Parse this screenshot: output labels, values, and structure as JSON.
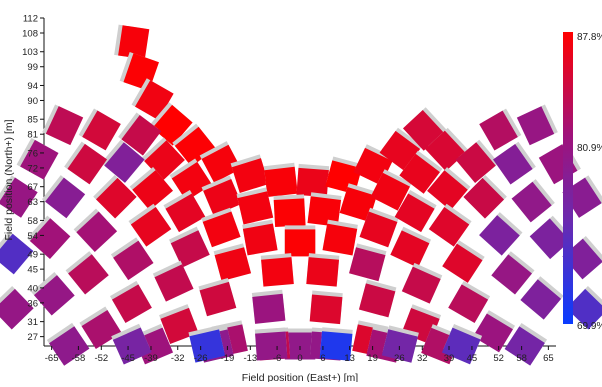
{
  "chart_data": {
    "type": "heatmap",
    "xlabel": "Field position (East+) [m]",
    "ylabel": "Field position (North+) [m]",
    "x_ticks": [
      -65,
      -58,
      -52,
      -45,
      -39,
      -32,
      -26,
      -19,
      -13,
      -6,
      0,
      6,
      13,
      19,
      26,
      32,
      39,
      45,
      52,
      58,
      65
    ],
    "y_ticks": [
      27,
      31,
      36,
      40,
      45,
      49,
      54,
      58,
      63,
      67,
      72,
      76,
      81,
      85,
      90,
      94,
      99,
      103,
      108,
      112
    ],
    "xlim": [
      -67,
      67
    ],
    "ylim": [
      24.5,
      112
    ],
    "colorbar": {
      "min": 69.9,
      "max": 87.8,
      "labels": [
        "87.8%",
        "80.9%",
        "69.9%"
      ],
      "mid_value": 80.9,
      "colors": [
        "#0a3cff",
        "#6a2ab0",
        "#a0127a",
        "#ff0000"
      ]
    },
    "rows": [
      {
        "radius": 44,
        "points": [
          {
            "angle": -81.5,
            "value": 87.3
          },
          {
            "angle": -70.8,
            "value": 87.6
          },
          {
            "angle": -60.1,
            "value": 86.9
          },
          {
            "angle": -49.4,
            "value": 87.8
          },
          {
            "angle": -38.6,
            "value": 87.6
          },
          {
            "angle": -27.9,
            "value": 87.2
          },
          {
            "angle": -17.2,
            "value": 87.0
          },
          {
            "angle": -6.5,
            "value": 87.4
          },
          {
            "angle": 4.3,
            "value": 86.5
          },
          {
            "angle": 15.0,
            "value": 87.8
          },
          {
            "angle": 25.7,
            "value": 87.0
          },
          {
            "angle": 36.4,
            "value": 86.2
          },
          {
            "angle": 47.1,
            "value": 85.0
          }
        ]
      },
      {
        "radius": 52,
        "points": [
          {
            "angle": -53.0,
            "value": 84.0
          },
          {
            "angle": -43.0,
            "value": 86.5
          },
          {
            "angle": -33.0,
            "value": 87.0
          },
          {
            "angle": -23.0,
            "value": 86.6
          },
          {
            "angle": -13.0,
            "value": 87.0
          },
          {
            "angle": -3.0,
            "value": 87.6
          },
          {
            "angle": 7.0,
            "value": 87.4
          },
          {
            "angle": 17.0,
            "value": 87.3
          },
          {
            "angle": 27.0,
            "value": 86.8
          },
          {
            "angle": 37.0,
            "value": 86.3
          },
          {
            "angle": 47.0,
            "value": 85.2
          }
        ]
      },
      {
        "radius": 60,
        "points": [
          {
            "angle": -60.0,
            "value": 84.8
          },
          {
            "angle": -50.0,
            "value": 78.5
          },
          {
            "angle": -40.0,
            "value": 86.6
          },
          {
            "angle": -30.0,
            "value": 86.0
          },
          {
            "angle": -20.0,
            "value": 87.0
          },
          {
            "angle": -10.0,
            "value": 86.8
          },
          {
            "angle": 0.0,
            "value": 87.6
          },
          {
            "angle": 10.0,
            "value": 87.2
          },
          {
            "angle": 20.0,
            "value": 86.2
          },
          {
            "angle": 30.0,
            "value": 86.0
          },
          {
            "angle": 40.0,
            "value": 86.0
          },
          {
            "angle": 50.0,
            "value": 84.3
          },
          {
            "angle": 60.0,
            "value": 82.8
          }
        ]
      },
      {
        "radius": 68,
        "points": [
          {
            "angle": -65.0,
            "value": 83.5
          },
          {
            "angle": -55.0,
            "value": 84.5
          },
          {
            "angle": -45.0,
            "value": 85.6
          },
          {
            "angle": -35.0,
            "value": 86.2
          },
          {
            "angle": -25.0,
            "value": 84.0
          },
          {
            "angle": -15.0,
            "value": 86.8
          },
          {
            "angle": -5.0,
            "value": 87.0
          },
          {
            "angle": 5.0,
            "value": 86.5
          },
          {
            "angle": 15.0,
            "value": 83.0
          },
          {
            "angle": 25.0,
            "value": 86.0
          },
          {
            "angle": 35.0,
            "value": 85.6
          },
          {
            "angle": 45.0,
            "value": 84.2
          },
          {
            "angle": 55.0,
            "value": 78.8
          },
          {
            "angle": 65.0,
            "value": 80.6
          }
        ]
      },
      {
        "radius": 78,
        "points": [
          {
            "angle": -61.0,
            "value": 81.3
          },
          {
            "angle": -52.0,
            "value": 79.0
          },
          {
            "angle": -43.0,
            "value": 81.8
          },
          {
            "angle": -34.0,
            "value": 82.5
          },
          {
            "angle": -25.0,
            "value": 83.8
          },
          {
            "angle": -16.0,
            "value": 84.6
          },
          {
            "angle": -6.0,
            "value": 81.0
          },
          {
            "angle": 5.0,
            "value": 85.5
          },
          {
            "angle": 15.0,
            "value": 84.3
          },
          {
            "angle": 24.0,
            "value": 84.0
          },
          {
            "angle": 33.0,
            "value": 85.6
          },
          {
            "angle": 42.0,
            "value": 78.0
          },
          {
            "angle": 51.0,
            "value": 80.0
          },
          {
            "angle": 60.0,
            "value": 81.0
          }
        ]
      },
      {
        "radius": 88,
        "points": [
          {
            "angle": -57.0,
            "value": 80.6
          },
          {
            "angle": -48.0,
            "value": 81.6
          },
          {
            "angle": -39.0,
            "value": 83.2
          },
          {
            "angle": -30.0,
            "value": 84.0
          },
          {
            "angle": -21.0,
            "value": 84.8
          },
          {
            "angle": -12.0,
            "value": 82.2
          },
          {
            "angle": 0.0,
            "value": 80.0
          },
          {
            "angle": 12.0,
            "value": 85.5
          },
          {
            "angle": 21.0,
            "value": 84.6
          },
          {
            "angle": 30.0,
            "value": 83.2
          },
          {
            "angle": 39.0,
            "value": 80.5
          },
          {
            "angle": 48.0,
            "value": 78.0
          },
          {
            "angle": 57.0,
            "value": 79.2
          }
        ]
      },
      {
        "radius": 98,
        "points": [
          {
            "angle": -50.0,
            "value": 74.6
          },
          {
            "angle": -41.0,
            "value": 80.4
          },
          {
            "angle": -32.0,
            "value": 82.2
          },
          {
            "angle": -23.0,
            "value": 81.3
          },
          {
            "angle": -13.0,
            "value": 79.6
          },
          {
            "angle": -4.0,
            "value": 83.8
          },
          {
            "angle": 4.0,
            "value": 80.2
          },
          {
            "angle": 13.0,
            "value": 81.8
          },
          {
            "angle": 22.0,
            "value": 82.6
          },
          {
            "angle": 31.0,
            "value": 81.0
          },
          {
            "angle": 40.0,
            "value": 78.2
          },
          {
            "angle": 49.0,
            "value": 78.4
          }
        ]
      },
      {
        "radius": 108,
        "points": [
          {
            "angle": -44.0,
            "value": 80.4
          },
          {
            "angle": -34.0,
            "value": 79.7
          },
          {
            "angle": -24.0,
            "value": 77.5
          },
          {
            "angle": -13.0,
            "value": 72.7
          },
          {
            "angle": -4.0,
            "value": 80.2
          },
          {
            "angle": 5.0,
            "value": 71.3
          },
          {
            "angle": 14.0,
            "value": 77.1
          },
          {
            "angle": 23.0,
            "value": 75.3
          },
          {
            "angle": 33.0,
            "value": 77.2
          },
          {
            "angle": 44.0,
            "value": 74.5
          }
        ]
      }
    ]
  }
}
